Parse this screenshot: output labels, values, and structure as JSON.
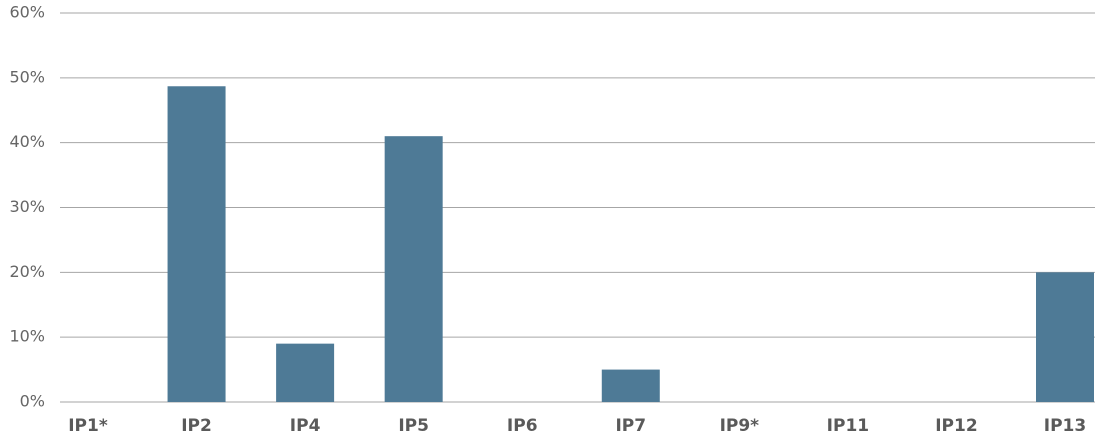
{
  "chart_data": {
    "type": "bar",
    "categories": [
      "IP1*",
      "IP2",
      "IP4",
      "IP5",
      "IP6",
      "IP7",
      "IP9*",
      "IP11",
      "IP12",
      "IP13"
    ],
    "values": [
      0,
      48.7,
      9,
      41,
      0,
      5,
      0,
      0,
      0,
      20
    ],
    "color": "#4e7a96",
    "ylim": [
      0,
      60
    ],
    "yticks": [
      {
        "value": 0,
        "label": "0%"
      },
      {
        "value": 10,
        "label": "10%"
      },
      {
        "value": 20,
        "label": "20%"
      },
      {
        "value": 30,
        "label": "30%"
      },
      {
        "value": 40,
        "label": "40%"
      },
      {
        "value": 50,
        "label": "50%"
      },
      {
        "value": 60,
        "label": "60%"
      }
    ],
    "grid": true
  }
}
